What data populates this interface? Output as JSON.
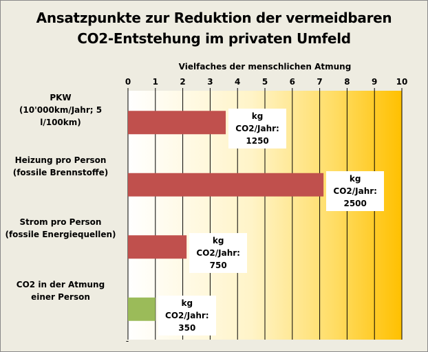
{
  "chart_data": {
    "type": "bar",
    "orientation": "horizontal",
    "title_lines": [
      "Ansatzpunkte zur Reduktion der vermeidbaren",
      "CO2-Entstehung im privaten Umfeld"
    ],
    "xlabel": "Vielfaches der menschlichen Atmung",
    "xlim": [
      0,
      10
    ],
    "ticks": [
      "0",
      "1",
      "2",
      "3",
      "4",
      "5",
      "6",
      "7",
      "8",
      "9",
      "10"
    ],
    "axis_position": "top",
    "grid": true,
    "background": "gradient-white-to-orange",
    "bottom_marker": "-",
    "categories": [
      {
        "lines": [
          "PKW",
          "(10'000km/Jahr; 5 l/100km)"
        ],
        "value": 3.57,
        "label_lines": [
          "kg CO2/Jahr:",
          "1250"
        ],
        "color": "#c0504d"
      },
      {
        "lines": [
          "Heizung pro Person",
          "(fossile Brennstoffe)"
        ],
        "value": 7.14,
        "label_lines": [
          "kg CO2/Jahr:",
          "2500"
        ],
        "color": "#c0504d"
      },
      {
        "lines": [
          "Strom pro Person",
          "(fossile Energiequellen)"
        ],
        "value": 2.14,
        "label_lines": [
          "kg CO2/Jahr:",
          "750"
        ],
        "color": "#c0504d"
      },
      {
        "lines": [
          "CO2 in der Atmung",
          "einer Person"
        ],
        "value": 1.0,
        "label_lines": [
          "kg CO2/Jahr:",
          "350"
        ],
        "color": "#9bbb59"
      }
    ]
  }
}
